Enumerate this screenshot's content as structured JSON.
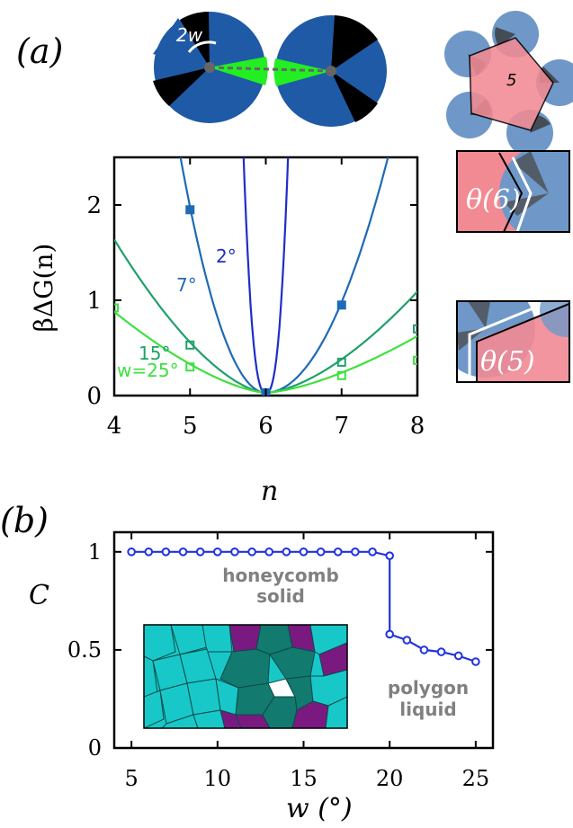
{
  "panel_a": {
    "label": "(a)",
    "patch_label": "2w",
    "pentagon_label": "5",
    "inset_top_label": "θ(6)",
    "inset_bottom_label": "θ(5)"
  },
  "panel_b": {
    "label": "(b)",
    "annotation_solid": [
      "honeycomb",
      "solid"
    ],
    "annotation_liquid": [
      "polygon",
      "liquid"
    ]
  },
  "colors": {
    "patch_blue": "#1f5aa6",
    "patch_green": "#22ee22",
    "patch_black": "#000000",
    "pentagon_fill": "#f28a93",
    "particle_blue": "#6f98c8",
    "curve_2": "#1f2ec8",
    "curve_7": "#1f6ab4",
    "curve_15": "#1fa06a",
    "curve_25": "#3fe03f",
    "line_b": "#2233dd",
    "cell_cyan": "#18c8c8",
    "cell_teal": "#127a6e",
    "cell_purple": "#7a1a80",
    "annotation_gray": "#808080"
  },
  "chart_data": [
    {
      "type": "line",
      "title": "",
      "xlabel": "n",
      "ylabel": "βΔG(n)",
      "xlim": [
        4,
        8
      ],
      "ylim": [
        0,
        2.5
      ],
      "xticks": [
        4,
        5,
        6,
        7,
        8
      ],
      "yticks": [
        0,
        1,
        2
      ],
      "series": [
        {
          "name": "2°",
          "x": [
            6,
            6.2,
            6.45
          ],
          "y": [
            0,
            1.2,
            2.5
          ],
          "left_x": [
            5.55,
            5.8,
            6
          ],
          "left_y": [
            2.5,
            1.2,
            0
          ],
          "markers": [],
          "color_key": "curve_2"
        },
        {
          "name": "7°",
          "x": [
            5,
            6,
            7
          ],
          "y": [
            1.95,
            0.02,
            0.95
          ],
          "markers": [
            [
              5,
              1.95
            ],
            [
              6,
              0.02
            ],
            [
              7,
              0.95
            ]
          ],
          "color_key": "curve_7"
        },
        {
          "name": "15°",
          "x": [
            5,
            6,
            7,
            8
          ],
          "y": [
            0.53,
            0.03,
            0.35,
            0.7
          ],
          "markers": [
            [
              5,
              0.53
            ],
            [
              7,
              0.35
            ],
            [
              8,
              0.7
            ]
          ],
          "color_key": "curve_15"
        },
        {
          "name": "w=25°",
          "x": [
            4,
            5,
            6,
            7,
            8
          ],
          "y": [
            0.92,
            0.3,
            0.03,
            0.21,
            0.37
          ],
          "markers": [
            [
              4,
              0.92
            ],
            [
              5,
              0.3
            ],
            [
              7,
              0.21
            ],
            [
              8,
              0.37
            ]
          ],
          "color_key": "curve_25"
        }
      ]
    },
    {
      "type": "line",
      "title": "",
      "xlabel": "w (°)",
      "ylabel": "C",
      "xlim": [
        4,
        26
      ],
      "ylim": [
        0,
        1.1
      ],
      "xticks": [
        5,
        10,
        15,
        20,
        25
      ],
      "yticks": [
        0,
        0.5,
        1
      ],
      "series": [
        {
          "name": "",
          "x": [
            5,
            6,
            7,
            8,
            9,
            10,
            11,
            12,
            13,
            14,
            15,
            16,
            17,
            18,
            19,
            20,
            20,
            21,
            22,
            23,
            24,
            25
          ],
          "y": [
            1,
            1,
            1,
            1,
            1,
            1,
            1,
            1,
            1,
            1,
            1,
            1,
            1,
            1,
            1,
            0.98,
            0.58,
            0.55,
            0.5,
            0.49,
            0.47,
            0.44
          ]
        }
      ]
    }
  ]
}
